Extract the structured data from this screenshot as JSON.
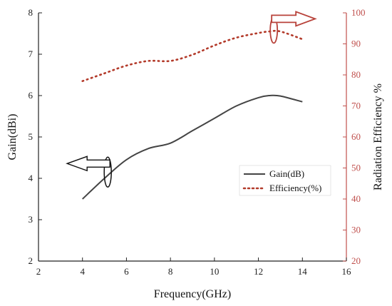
{
  "chart_data": {
    "type": "line",
    "title": "",
    "xlabel": "Frequency(GHz)",
    "ylabel_left": "Gain(dBi)",
    "ylabel_right": "Radiation Efficiency %",
    "xlim": [
      2,
      16
    ],
    "ylim_left": [
      2,
      8
    ],
    "ylim_right": [
      20,
      100
    ],
    "x_ticks": [
      2,
      4,
      6,
      8,
      10,
      12,
      14,
      16
    ],
    "y_ticks_left": [
      2,
      3,
      4,
      5,
      6,
      7,
      8
    ],
    "y_ticks_right": [
      20,
      30,
      40,
      50,
      60,
      70,
      80,
      90,
      100
    ],
    "grid": false,
    "legend_position": "center-right",
    "series": [
      {
        "name": "Gain(dB)",
        "axis": "left",
        "style": "solid",
        "color": "#444444",
        "x": [
          4,
          5,
          6,
          7,
          8,
          9,
          10,
          11,
          12,
          12.5,
          13,
          14
        ],
        "y": [
          3.5,
          4.0,
          4.45,
          4.72,
          4.85,
          5.15,
          5.45,
          5.75,
          5.95,
          6.0,
          5.99,
          5.85
        ]
      },
      {
        "name": "Efficiency(%)",
        "axis": "right",
        "style": "dotted",
        "color": "#b33a2a",
        "x": [
          4,
          5,
          6,
          7,
          8,
          9,
          10,
          11,
          12,
          12.5,
          13,
          14
        ],
        "y": [
          78,
          80.5,
          83,
          84.5,
          84.5,
          86.5,
          89.5,
          92,
          93.5,
          94,
          94,
          91.5
        ]
      }
    ]
  },
  "colors": {
    "left_axis": "#222222",
    "right_axis": "#c0504d",
    "gain_line": "#444444",
    "efficiency_line": "#b33a2a"
  },
  "annotations": {
    "left_arrow": "arrow pointing to left axis around the Gain curve",
    "right_arrow": "arrow pointing to right axis around the Efficiency curve"
  }
}
